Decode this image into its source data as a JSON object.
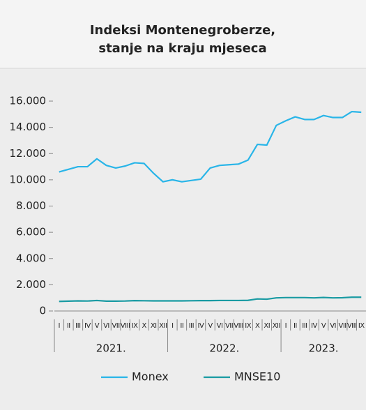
{
  "chart_data": {
    "type": "line",
    "title": [
      "Indeksi Montenegroberze,",
      "stanje na kraju mjeseca"
    ],
    "categories": [
      "I",
      "II",
      "III",
      "IV",
      "V",
      "VI",
      "VII",
      "VIII",
      "IX",
      "X",
      "XI",
      "XII",
      "I",
      "II",
      "III",
      "IV",
      "V",
      "VI",
      "VII",
      "VIII",
      "IX",
      "X",
      "XI",
      "XII",
      "I",
      "II",
      "III",
      "IV",
      "V",
      "VI",
      "VII",
      "VIII",
      "IX"
    ],
    "year_groups": [
      "2021.",
      "2022.",
      "2023."
    ],
    "series": [
      {
        "name": "Monex",
        "color": "#29b5e8",
        "values": [
          10600,
          10800,
          11000,
          11000,
          11600,
          11100,
          10900,
          11050,
          11300,
          11250,
          10500,
          9850,
          10000,
          9850,
          9950,
          10050,
          10900,
          11100,
          11150,
          11200,
          11500,
          12700,
          12650,
          14150,
          14500,
          14800,
          14600,
          14600,
          14900,
          14750,
          14750,
          15200,
          15150
        ]
      },
      {
        "name": "MNSE10",
        "color": "#1a9ba3",
        "values": [
          730,
          750,
          770,
          760,
          800,
          750,
          750,
          760,
          790,
          780,
          770,
          770,
          770,
          770,
          780,
          790,
          790,
          800,
          800,
          800,
          810,
          920,
          900,
          1000,
          1020,
          1020,
          1020,
          1000,
          1030,
          1000,
          1010,
          1050,
          1050
        ]
      }
    ],
    "ylim": [
      0,
      16000
    ],
    "yticks": [
      0,
      {
        "value": 2000,
        "label": "2.000"
      },
      {
        "value": 4000,
        "label": "4.000"
      },
      {
        "value": 6000,
        "label": "6.000"
      },
      {
        "value": 8000,
        "label": "8.000"
      },
      {
        "value": 10000,
        "label": "10.000"
      },
      {
        "value": 12000,
        "label": "12.000"
      },
      {
        "value": 14000,
        "label": "14.000"
      },
      {
        "value": 16000,
        "label": "16.000"
      }
    ],
    "grid": false,
    "legend": "bottom"
  }
}
